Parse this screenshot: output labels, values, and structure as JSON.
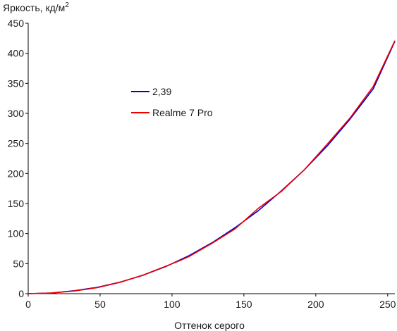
{
  "chart_data": {
    "type": "line",
    "ylabel": "Яркость, кд/м",
    "ylabel_superscript": "2",
    "xlabel": "Оттенок серого",
    "xlim": [
      0,
      255
    ],
    "ylim": [
      0,
      450
    ],
    "xticks": [
      0,
      50,
      100,
      150,
      200,
      250
    ],
    "yticks": [
      0,
      50,
      100,
      150,
      200,
      250,
      300,
      350,
      400,
      450
    ],
    "grid": false,
    "legend_position": "upper-left-center",
    "series": [
      {
        "name": "2,39",
        "color": "#0000cc",
        "x": [
          0,
          16,
          32,
          48,
          64,
          80,
          96,
          112,
          128,
          144,
          160,
          176,
          192,
          208,
          224,
          240,
          255
        ],
        "y": [
          0,
          1.1,
          4.9,
          10.5,
          19.3,
          30.7,
          45.5,
          63.5,
          85.0,
          110,
          138,
          171,
          206,
          246,
          291,
          341,
          420
        ]
      },
      {
        "name": "Realme 7 Pro",
        "color": "#ee0000",
        "x": [
          0,
          16,
          32,
          48,
          64,
          80,
          96,
          104,
          112,
          128,
          144,
          160,
          176,
          192,
          208,
          224,
          240,
          255
        ],
        "y": [
          0,
          1.0,
          4.5,
          10.0,
          19.0,
          31.0,
          46.0,
          53.5,
          62.0,
          84.0,
          108,
          142,
          170,
          206,
          249,
          293,
          345,
          421
        ]
      }
    ]
  }
}
